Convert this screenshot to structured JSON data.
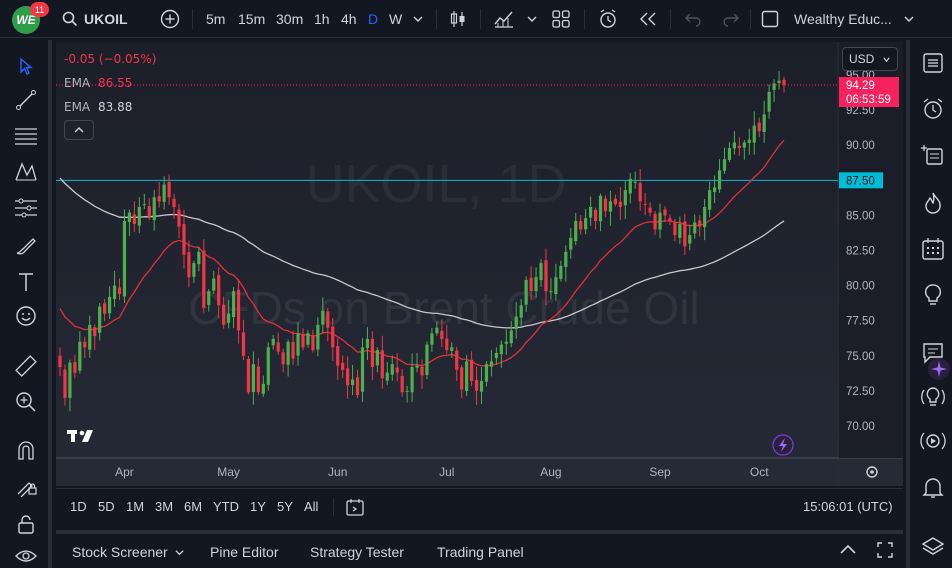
{
  "header": {
    "notification_count": "11",
    "symbol": "UKOIL",
    "intervals": [
      "5m",
      "15m",
      "30m",
      "1h",
      "4h",
      "D",
      "W"
    ],
    "active_interval": "D",
    "layout_name": "Wealthy Educ..."
  },
  "legend": {
    "change": "-0.05 (−0.05%)",
    "ema1_label": "EMA",
    "ema1_value": "86.55",
    "ema2_label": "EMA",
    "ema2_value": "83.88"
  },
  "watermark": {
    "symbol": "UKOIL, 1D",
    "name": "CFDs on Brent Crude Oil"
  },
  "price_scale": {
    "currency": "USD",
    "ticks": [
      "95.00",
      "92.50",
      "90.00",
      "87.50",
      "85.00",
      "82.50",
      "80.00",
      "77.50",
      "75.00",
      "72.50",
      "70.00"
    ],
    "last_price": "94.29",
    "countdown": "06:53:59",
    "line_label": "87.50"
  },
  "time_axis": {
    "labels": [
      "Apr",
      "May",
      "Jun",
      "Jul",
      "Aug",
      "Sep",
      "Oct"
    ]
  },
  "range_bar": {
    "ranges": [
      "1D",
      "5D",
      "1M",
      "3M",
      "6M",
      "YTD",
      "1Y",
      "5Y",
      "All"
    ],
    "clock": "15:06:01 (UTC)"
  },
  "bottom_panel": {
    "tabs": [
      "Stock Screener",
      "Pine Editor",
      "Strategy Tester",
      "Trading Panel"
    ]
  },
  "colors": {
    "up": "#26a69a",
    "up_candle": "#4caf50",
    "down": "#f23645",
    "ema_fast": "#e0303a",
    "ema_slow": "#c8c8c8",
    "hline": "#00bcd4",
    "price_tag": "#f7215e",
    "accent": "#2962ff"
  },
  "icons": {
    "left": [
      "cursor-icon",
      "trendline-icon",
      "fib-icon",
      "pattern-icon",
      "forecast-icon",
      "brush-icon",
      "text-icon",
      "emoji-icon",
      "ruler-icon",
      "zoom-icon",
      "magnet-icon",
      "lock-drawing-icon",
      "lock-icon",
      "eye-icon"
    ],
    "right": [
      "watchlist-icon",
      "alarm-icon",
      "object-tree-icon",
      "hotlist-icon",
      "calendar-icon",
      "ideas-icon",
      "chat-icon",
      "signal-icon",
      "help-icon"
    ]
  },
  "chart_data": {
    "type": "candlestick",
    "title": "",
    "x_labels": [
      "Apr",
      "May",
      "Jun",
      "Jul",
      "Aug",
      "Sep",
      "Oct"
    ],
    "ylim": [
      68.5,
      96.5
    ],
    "y_ticks": [
      70,
      72.5,
      75,
      77.5,
      80,
      82.5,
      85,
      87.5,
      90,
      92.5,
      95
    ],
    "last_price": 94.29,
    "horizontal_line": 87.5,
    "ema_fast_last": 86.55,
    "ema_slow_last": 83.88,
    "closes": [
      74.2,
      72.0,
      74.5,
      73.8,
      76.0,
      75.6,
      77.2,
      76.4,
      78.5,
      78.0,
      79.2,
      80.0,
      79.4,
      84.6,
      85.2,
      84.4,
      85.6,
      85.8,
      84.9,
      86.3,
      86.0,
      87.2,
      86.3,
      85.6,
      84.2,
      82.2,
      80.6,
      81.6,
      82.4,
      78.4,
      79.6,
      80.5,
      78.6,
      77.2,
      78.0,
      79.6,
      76.8,
      75.0,
      72.4,
      74.4,
      72.4,
      73.0,
      75.6,
      76.2,
      75.3,
      74.4,
      76.0,
      74.8,
      76.6,
      75.6,
      76.6,
      75.4,
      77.2,
      78.2,
      77.0,
      75.6,
      74.3,
      74.0,
      72.9,
      73.3,
      72.2,
      75.6,
      76.2,
      74.2,
      75.4,
      73.4,
      73.8,
      74.4,
      73.8,
      72.4,
      72.5,
      74.2,
      74.3,
      73.6,
      75.8,
      76.6,
      77.0,
      76.2,
      75.4,
      75.6,
      74.0,
      72.6,
      74.6,
      73.2,
      72.5,
      73.2,
      74.4,
      74.6,
      75.2,
      75.8,
      76.0,
      76.8,
      77.8,
      78.6,
      80.4,
      79.6,
      80.6,
      81.6,
      79.6,
      79.6,
      80.6,
      81.4,
      82.4,
      83.4,
      84.6,
      84.0,
      84.8,
      85.6,
      84.6,
      86.4,
      85.3,
      86.0,
      85.8,
      85.6,
      86.8,
      87.6,
      87.4,
      86.0,
      85.8,
      85.2,
      84.0,
      85.2,
      85.0,
      84.6,
      83.6,
      84.4,
      82.8,
      83.6,
      84.5,
      84.2,
      85.6,
      86.8,
      87.0,
      88.2,
      89.0,
      89.8,
      90.2,
      89.8,
      90.2,
      90.4,
      91.4,
      91.0,
      92.2,
      93.8,
      94.4,
      94.6,
      94.3
    ]
  }
}
